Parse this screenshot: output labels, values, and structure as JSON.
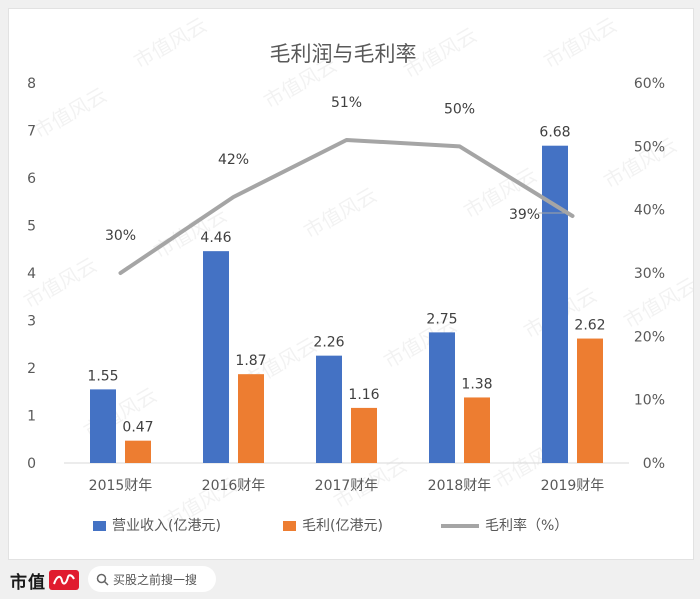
{
  "chart_data": {
    "type": "bar",
    "title": "毛利润与毛利率",
    "categories": [
      "2015财年",
      "2016财年",
      "2017财年",
      "2018财年",
      "2019财年"
    ],
    "series": [
      {
        "name": "营业收入(亿港元)",
        "kind": "bar",
        "axis": "left",
        "color": "#4472c4",
        "values": [
          1.55,
          4.46,
          2.26,
          2.75,
          6.68
        ]
      },
      {
        "name": "毛利(亿港元)",
        "kind": "bar",
        "axis": "left",
        "color": "#ed7d31",
        "values": [
          0.47,
          1.87,
          1.16,
          1.38,
          2.62
        ]
      },
      {
        "name": "毛利率（%）",
        "kind": "line",
        "axis": "right",
        "color": "#a5a5a5",
        "values": [
          30,
          42,
          51,
          50,
          39
        ]
      }
    ],
    "bar_labels": [
      [
        "1.55",
        "4.46",
        "2.26",
        "2.75",
        "6.68"
      ],
      [
        "0.47",
        "1.87",
        "1.16",
        "1.38",
        "2.62"
      ]
    ],
    "line_labels": [
      "30%",
      "42%",
      "51%",
      "50%",
      "39%"
    ],
    "ylim_left": [
      0,
      8
    ],
    "ylim_right": [
      0,
      60
    ],
    "y_left_ticks": [
      "0",
      "1",
      "2",
      "3",
      "4",
      "5",
      "6",
      "7",
      "8"
    ],
    "y_right_ticks": [
      "0%",
      "10%",
      "20%",
      "30%",
      "40%",
      "50%",
      "60%"
    ],
    "legend_position": "bottom",
    "grid": false
  },
  "watermark_text": "市值风云",
  "footer": {
    "brand": "市值",
    "logo_text": "风云",
    "search_text": "买股之前搜一搜"
  }
}
